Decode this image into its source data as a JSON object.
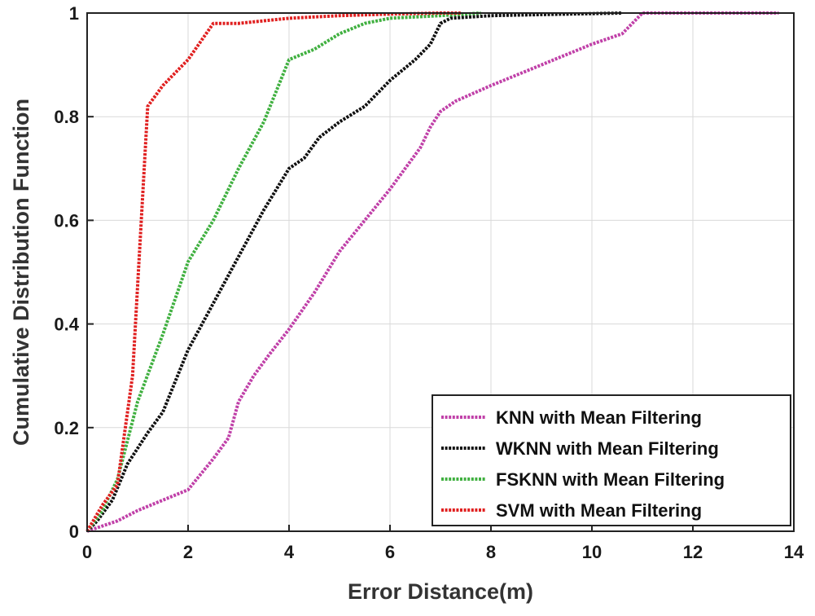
{
  "chart_data": {
    "type": "line",
    "title": "",
    "xlabel": "Error Distance(m)",
    "ylabel": "Cumulative Distribution Function",
    "xlim": [
      0,
      14
    ],
    "ylim": [
      0,
      1
    ],
    "xticks": [
      0,
      2,
      4,
      6,
      8,
      10,
      12,
      14
    ],
    "yticks": [
      0,
      0.2,
      0.4,
      0.6,
      0.8,
      1
    ],
    "xtick_labels": [
      "0",
      "2",
      "4",
      "6",
      "8",
      "10",
      "12",
      "14"
    ],
    "ytick_labels": [
      "0",
      "0.2",
      "0.4",
      "0.6",
      "0.8",
      "1"
    ],
    "grid": true,
    "legend_position": "bottom-right",
    "series": [
      {
        "name": "KNN with Mean Filtering",
        "color": "#c040a8",
        "points": [
          [
            0,
            0
          ],
          [
            0.3,
            0.01
          ],
          [
            0.6,
            0.02
          ],
          [
            1,
            0.04
          ],
          [
            1.5,
            0.06
          ],
          [
            2,
            0.08
          ],
          [
            2.5,
            0.14
          ],
          [
            2.8,
            0.18
          ],
          [
            3,
            0.25
          ],
          [
            3.3,
            0.3
          ],
          [
            3.6,
            0.34
          ],
          [
            4,
            0.39
          ],
          [
            4.5,
            0.46
          ],
          [
            5,
            0.54
          ],
          [
            5.5,
            0.6
          ],
          [
            6,
            0.66
          ],
          [
            6.3,
            0.7
          ],
          [
            6.6,
            0.74
          ],
          [
            6.8,
            0.78
          ],
          [
            7,
            0.81
          ],
          [
            7.3,
            0.83
          ],
          [
            8,
            0.86
          ],
          [
            9,
            0.9
          ],
          [
            10,
            0.94
          ],
          [
            10.6,
            0.96
          ],
          [
            11,
            1
          ],
          [
            12,
            1
          ],
          [
            13.7,
            1
          ]
        ]
      },
      {
        "name": "WKNN with Mean Filtering",
        "color": "#111111",
        "points": [
          [
            0,
            0
          ],
          [
            0.2,
            0.02
          ],
          [
            0.5,
            0.06
          ],
          [
            0.8,
            0.13
          ],
          [
            1.2,
            0.19
          ],
          [
            1.5,
            0.23
          ],
          [
            2,
            0.35
          ],
          [
            2.5,
            0.44
          ],
          [
            3,
            0.53
          ],
          [
            3.5,
            0.62
          ],
          [
            4,
            0.7
          ],
          [
            4.3,
            0.72
          ],
          [
            4.6,
            0.76
          ],
          [
            5,
            0.79
          ],
          [
            5.5,
            0.82
          ],
          [
            6,
            0.87
          ],
          [
            6.5,
            0.91
          ],
          [
            6.8,
            0.94
          ],
          [
            7,
            0.98
          ],
          [
            7.2,
            0.99
          ],
          [
            8,
            0.995
          ],
          [
            9,
            0.997
          ],
          [
            10.6,
            1
          ]
        ]
      },
      {
        "name": "FSKNN with Mean Filtering",
        "color": "#40b040",
        "points": [
          [
            0,
            0
          ],
          [
            0.3,
            0.04
          ],
          [
            0.6,
            0.1
          ],
          [
            1,
            0.25
          ],
          [
            1.5,
            0.38
          ],
          [
            2,
            0.52
          ],
          [
            2.5,
            0.6
          ],
          [
            3,
            0.7
          ],
          [
            3.5,
            0.79
          ],
          [
            4,
            0.91
          ],
          [
            4.5,
            0.93
          ],
          [
            5,
            0.96
          ],
          [
            5.5,
            0.98
          ],
          [
            6,
            0.99
          ],
          [
            7,
            0.995
          ],
          [
            7.8,
            1
          ]
        ]
      },
      {
        "name": "SVM with Mean Filtering",
        "color": "#e02020",
        "points": [
          [
            0,
            0
          ],
          [
            0.3,
            0.05
          ],
          [
            0.6,
            0.09
          ],
          [
            0.9,
            0.3
          ],
          [
            1.2,
            0.82
          ],
          [
            1.5,
            0.86
          ],
          [
            2,
            0.91
          ],
          [
            2.5,
            0.98
          ],
          [
            3,
            0.98
          ],
          [
            4,
            0.99
          ],
          [
            5,
            0.995
          ],
          [
            6,
            0.998
          ],
          [
            7,
            1
          ],
          [
            7.4,
            1
          ]
        ]
      }
    ]
  }
}
